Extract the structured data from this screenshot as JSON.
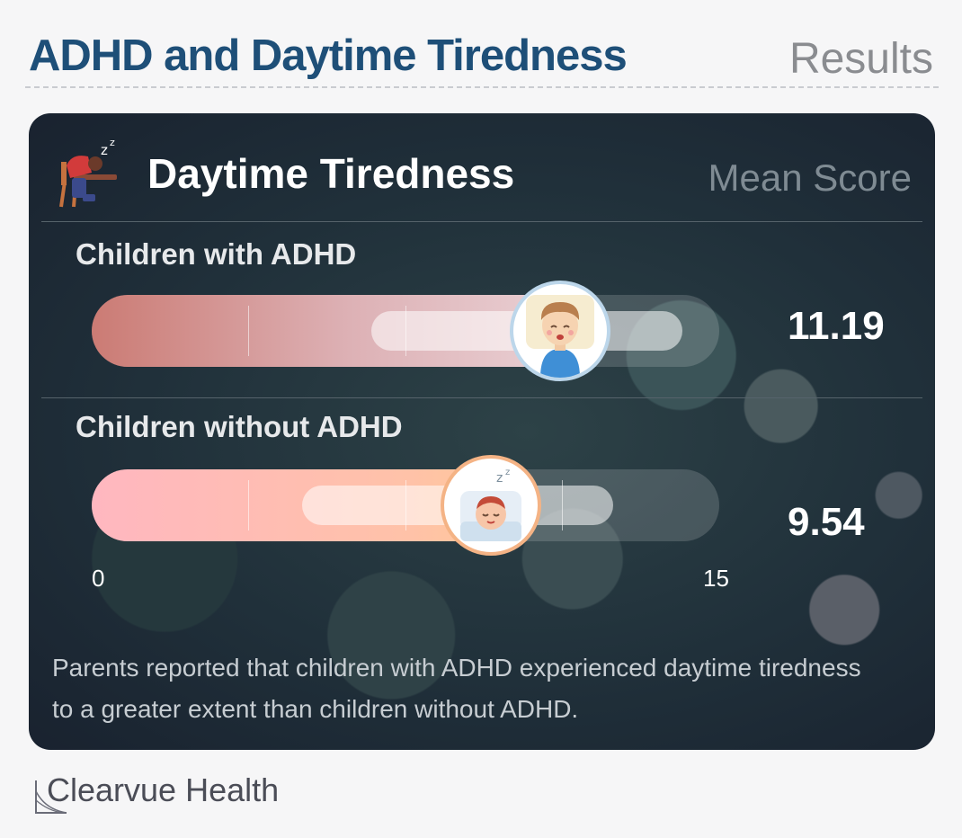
{
  "header": {
    "title": "ADHD and Daytime Tiredness",
    "subtitle": "Results"
  },
  "card": {
    "title": "Daytime Tiredness",
    "subtitle": "Mean Score",
    "icon": "sleeping-person-icon"
  },
  "chart_data": {
    "type": "bar",
    "orientation": "horizontal",
    "title": "Daytime Tiredness",
    "categories": [
      "Children with ADHD",
      "Children without ADHD"
    ],
    "values": [
      11.19,
      9.54
    ],
    "value_labels": [
      "11.19",
      "9.54"
    ],
    "xlim": [
      0,
      15
    ],
    "tick_labels": [
      "0",
      "15"
    ],
    "grid": false,
    "icons": [
      "tired-child-icon",
      "sleeping-child-icon"
    ],
    "colors": [
      "#d38f8a",
      "#ffbcaa"
    ]
  },
  "footnote": "Parents reported that children with ADHD experienced daytime tiredness to a greater extent than children without ADHD.",
  "brand": {
    "name": "Clearvue Health"
  }
}
